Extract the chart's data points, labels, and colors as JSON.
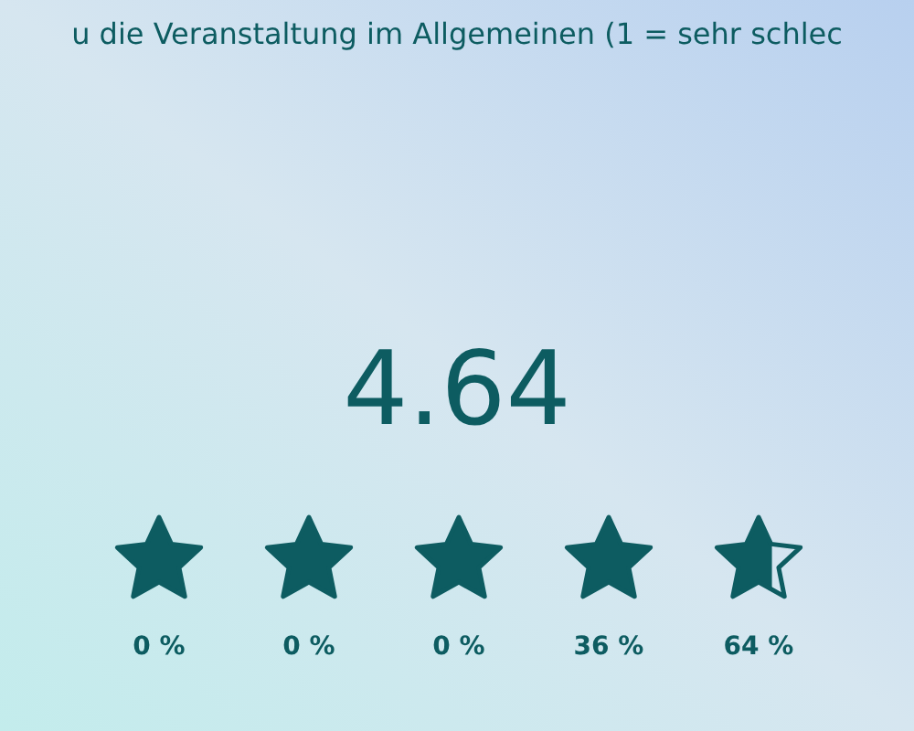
{
  "chart_data": {
    "type": "other",
    "title": "u die Veranstaltung im Allgemeinen (1 = sehr schlec",
    "categories": [
      null,
      null,
      null,
      null,
      null
    ],
    "values": [
      0,
      0,
      0,
      36,
      64
    ],
    "value_labels": [
      "0 %",
      "0 %",
      "0 %",
      "36 %",
      "64 %"
    ],
    "color": "#0d5c61",
    "annotations": [
      "4.64"
    ]
  }
}
